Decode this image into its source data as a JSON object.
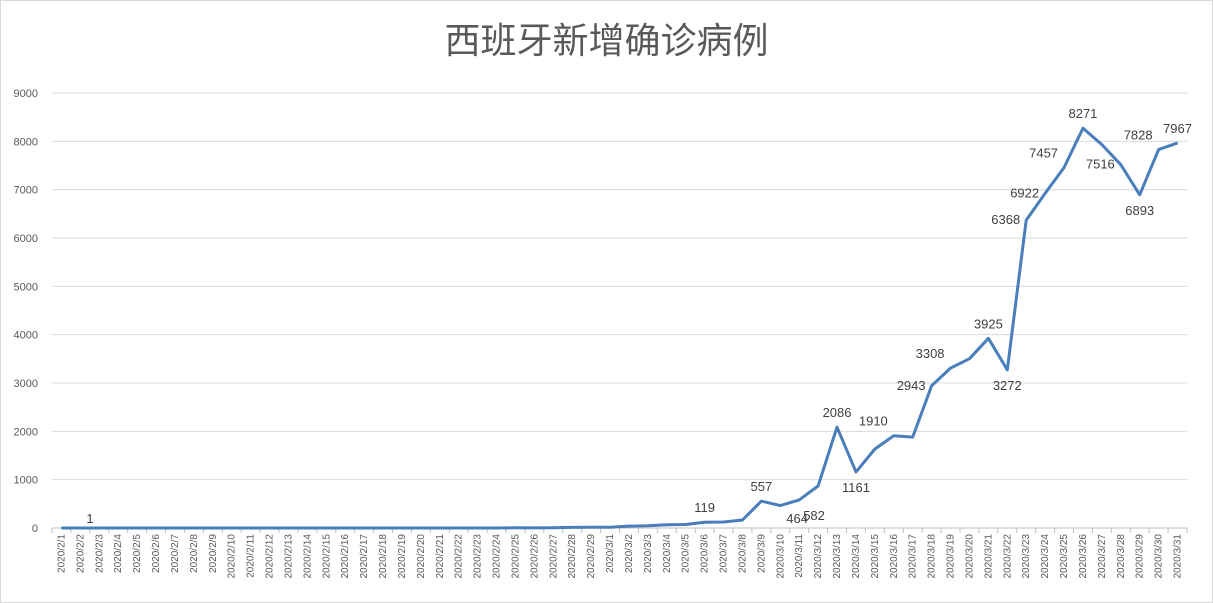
{
  "chart_data": {
    "type": "line",
    "title": "西班牙新增确诊病例",
    "xlabel": "",
    "ylabel": "",
    "ylim": [
      0,
      9000
    ],
    "yticks": [
      0,
      1000,
      2000,
      3000,
      4000,
      5000,
      6000,
      7000,
      8000,
      9000
    ],
    "grid": true,
    "legend": "none",
    "color": "#4a7ebb",
    "categories": [
      "2020/2/1",
      "2020/2/2",
      "2020/2/3",
      "2020/2/4",
      "2020/2/5",
      "2020/2/6",
      "2020/2/7",
      "2020/2/8",
      "2020/2/9",
      "2020/2/10",
      "2020/2/11",
      "2020/2/12",
      "2020/2/13",
      "2020/2/14",
      "2020/2/15",
      "2020/2/16",
      "2020/2/17",
      "2020/2/18",
      "2020/2/19",
      "2020/2/20",
      "2020/2/21",
      "2020/2/22",
      "2020/2/23",
      "2020/2/24",
      "2020/2/25",
      "2020/2/26",
      "2020/2/27",
      "2020/2/28",
      "2020/2/29",
      "2020/3/1",
      "2020/3/2",
      "2020/3/3",
      "2020/3/4",
      "2020/3/5",
      "2020/3/6",
      "2020/3/7",
      "2020/3/8",
      "2020/3/9",
      "2020/3/10",
      "2020/3/11",
      "2020/3/12",
      "2020/3/13",
      "2020/3/14",
      "2020/3/15",
      "2020/3/16",
      "2020/3/17",
      "2020/3/18",
      "2020/3/19",
      "2020/3/20",
      "2020/3/21",
      "2020/3/22",
      "2020/3/23",
      "2020/3/24",
      "2020/3/25",
      "2020/3/26",
      "2020/3/27",
      "2020/3/28",
      "2020/3/29",
      "2020/3/30",
      "2020/3/31"
    ],
    "values": [
      0,
      1,
      0,
      0,
      0,
      0,
      0,
      0,
      1,
      0,
      0,
      0,
      0,
      0,
      0,
      0,
      0,
      0,
      0,
      0,
      0,
      0,
      0,
      0,
      4,
      2,
      6,
      13,
      15,
      17,
      39,
      45,
      69,
      73,
      119,
      124,
      165,
      557,
      464,
      582,
      869,
      2086,
      1161,
      1634,
      1910,
      1880,
      2943,
      3308,
      3503,
      3925,
      3272,
      6368,
      6922,
      7457,
      8271,
      7933,
      7516,
      6893,
      7828,
      7967
    ],
    "data_labels": [
      {
        "index": 1,
        "text": "1",
        "pos": "below"
      },
      {
        "index": 34,
        "text": "119",
        "pos": "above"
      },
      {
        "index": 37,
        "text": "557",
        "pos": "above"
      },
      {
        "index": 38,
        "text": "464",
        "pos": "below"
      },
      {
        "index": 39,
        "text": "582",
        "pos": "below-right"
      },
      {
        "index": 41,
        "text": "2086",
        "pos": "above"
      },
      {
        "index": 42,
        "text": "1161",
        "pos": "below"
      },
      {
        "index": 44,
        "text": "1910",
        "pos": "above-left"
      },
      {
        "index": 46,
        "text": "2943",
        "pos": "left"
      },
      {
        "index": 47,
        "text": "3308",
        "pos": "above-left"
      },
      {
        "index": 49,
        "text": "3925",
        "pos": "above"
      },
      {
        "index": 50,
        "text": "3272",
        "pos": "below"
      },
      {
        "index": 51,
        "text": "6368",
        "pos": "left"
      },
      {
        "index": 52,
        "text": "6922",
        "pos": "left"
      },
      {
        "index": 53,
        "text": "7457",
        "pos": "above-left"
      },
      {
        "index": 54,
        "text": "8271",
        "pos": "above"
      },
      {
        "index": 56,
        "text": "7516",
        "pos": "left"
      },
      {
        "index": 57,
        "text": "6893",
        "pos": "below"
      },
      {
        "index": 58,
        "text": "7828",
        "pos": "above-left"
      },
      {
        "index": 59,
        "text": "7967",
        "pos": "above"
      }
    ]
  }
}
